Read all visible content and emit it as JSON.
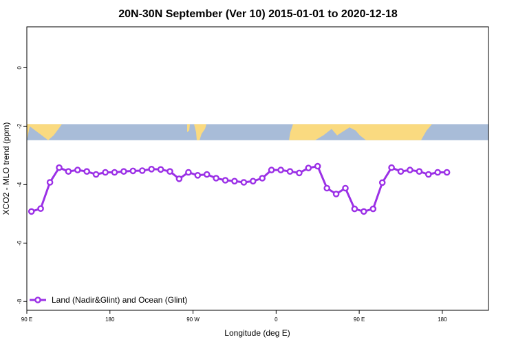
{
  "chart_data": {
    "type": "line",
    "title": "20N-30N September (Ver 10)   2015-01-01 to 2020-12-18",
    "xlabel": "Longitude (deg E)",
    "ylabel": "XCO2 - MLO trend (ppm)",
    "xlim": [
      90,
      590
    ],
    "ylim": [
      -8.3,
      1.4
    ],
    "xticks": [
      {
        "value": 90,
        "label": "90 E"
      },
      {
        "value": 180,
        "label": "180"
      },
      {
        "value": 270,
        "label": "90 W"
      },
      {
        "value": 360,
        "label": "0"
      },
      {
        "value": 450,
        "label": "90 E"
      },
      {
        "value": 540,
        "label": "180"
      }
    ],
    "yticks": [
      {
        "value": 0,
        "label": "0"
      },
      {
        "value": -2,
        "label": "-2"
      },
      {
        "value": -4,
        "label": "-4"
      },
      {
        "value": -6,
        "label": "-6"
      },
      {
        "value": -8,
        "label": "-8"
      }
    ],
    "map_band": {
      "lat_range": "20N-30N",
      "y_top": -1.93,
      "y_bottom": -2.48,
      "ocean_color": "#a8bcd8",
      "land_color": "#fada80"
    },
    "series": [
      {
        "name": "Land (Nadir&Glint) and Ocean (Glint)",
        "color": "#9b30e6",
        "x": [
          95,
          105,
          115,
          125,
          135,
          145,
          155,
          165,
          175,
          185,
          195,
          205,
          215,
          225,
          235,
          245,
          255,
          265,
          275,
          285,
          295,
          305,
          315,
          325,
          335,
          345,
          355,
          365,
          375,
          385,
          395,
          405,
          415,
          425,
          435,
          445,
          455,
          465,
          475,
          485,
          495,
          505,
          515,
          525,
          535,
          545
        ],
        "values": [
          -4.92,
          -4.82,
          -3.92,
          -3.42,
          -3.55,
          -3.5,
          -3.55,
          -3.65,
          -3.58,
          -3.58,
          -3.55,
          -3.53,
          -3.52,
          -3.47,
          -3.48,
          -3.55,
          -3.8,
          -3.58,
          -3.68,
          -3.65,
          -3.78,
          -3.85,
          -3.88,
          -3.92,
          -3.88,
          -3.78,
          -3.5,
          -3.5,
          -3.55,
          -3.6,
          -3.43,
          -3.37,
          -4.12,
          -4.32,
          -4.12,
          -4.83,
          -4.92,
          -4.83,
          -3.93,
          -3.42,
          -3.55,
          -3.5,
          -3.55,
          -3.65,
          -3.58,
          -3.58
        ]
      }
    ],
    "legend_position": "bottom-left"
  }
}
